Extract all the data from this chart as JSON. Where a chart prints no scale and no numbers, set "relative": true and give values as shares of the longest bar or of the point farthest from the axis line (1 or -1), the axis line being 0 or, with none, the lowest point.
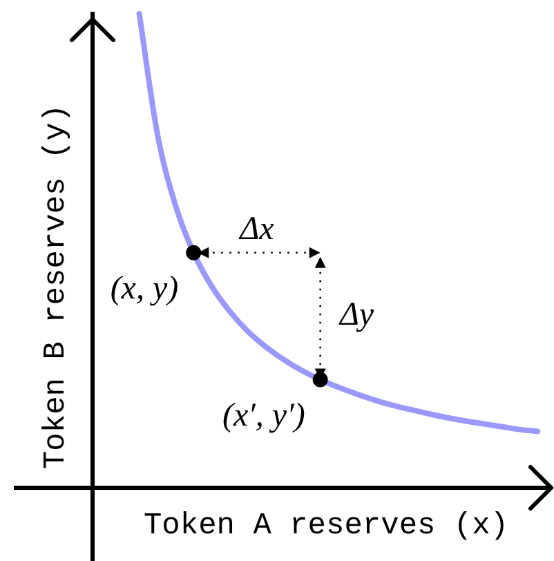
{
  "chart_data": {
    "type": "line",
    "xlabel": "Token A reserves (x)",
    "ylabel": "Token B reserves (y)",
    "categories": [
      null,
      null,
      null,
      null,
      null,
      null,
      null,
      null,
      null,
      null,
      null,
      null,
      null,
      null,
      null,
      null,
      null,
      null,
      null,
      null,
      null,
      null,
      null
    ],
    "relative": true,
    "series": [
      {
        "color": "#9999ff",
        "marker": "none",
        "values": [
          1,
          0.747,
          0.596,
          0.496,
          0.425,
          0.372,
          0.33,
          0.297,
          0.27,
          0.247,
          0.228,
          0.212,
          0.198,
          0.185,
          0.174,
          0.165,
          0.156,
          0.148,
          0.141,
          0.135,
          0.129,
          0.123,
          0.119
        ]
      },
      {
        "color": "#000000",
        "marker": "circle",
        "values": [
          null,
          null,
          null,
          0.496,
          null,
          null,
          null,
          null,
          null,
          null,
          0.228,
          null,
          null,
          null,
          null,
          null,
          null,
          null,
          null,
          null,
          null,
          null,
          null
        ]
      }
    ],
    "annotations": [
      "(x, y)",
      "(x′, y′)",
      "Δx",
      "Δy"
    ]
  }
}
